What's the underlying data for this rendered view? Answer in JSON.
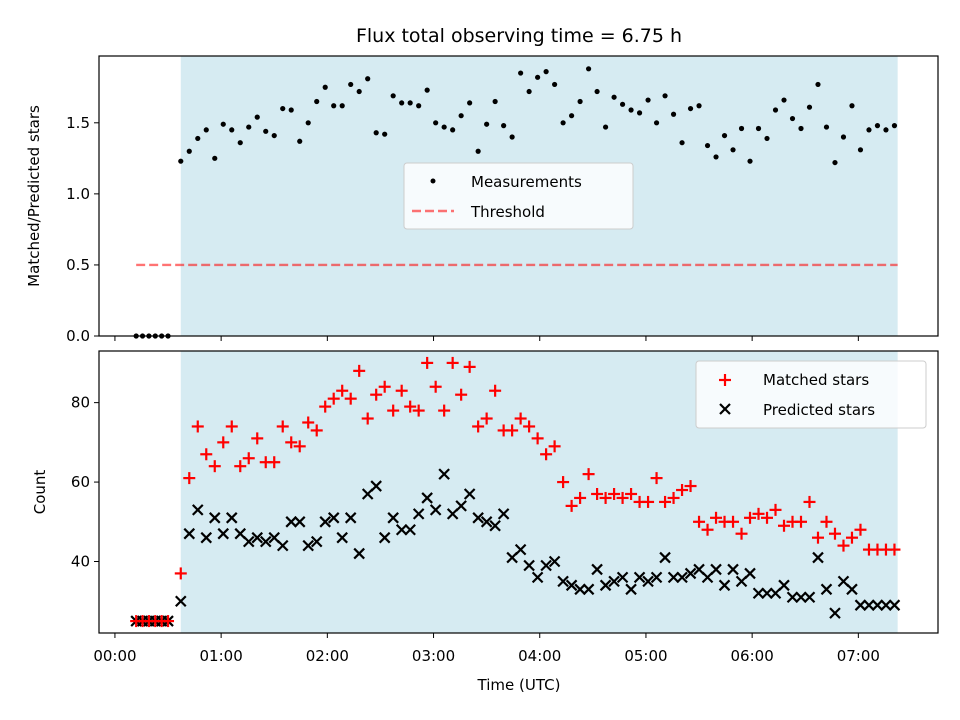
{
  "chart_data": {
    "type": "scatter",
    "title": "Flux total observing time = 6.75 h",
    "xlabel": "Time (UTC)",
    "x_unit": "hours since 00:00 UTC",
    "xlim": [
      -0.15,
      7.75
    ],
    "x_ticks": [
      {
        "value": 0,
        "label": "00:00"
      },
      {
        "value": 1,
        "label": "01:00"
      },
      {
        "value": 2,
        "label": "02:00"
      },
      {
        "value": 3,
        "label": "03:00"
      },
      {
        "value": 4,
        "label": "04:00"
      },
      {
        "value": 5,
        "label": "05:00"
      },
      {
        "value": 6,
        "label": "06:00"
      },
      {
        "value": 7,
        "label": "07:00"
      }
    ],
    "observing_window": {
      "start": 0.62,
      "end": 7.37,
      "color": "#add8e6"
    },
    "top_panel": {
      "ylabel": "Matched/Predicted stars",
      "ylim": [
        0,
        1.97
      ],
      "y_ticks": [
        {
          "value": 0,
          "label": "0.0"
        },
        {
          "value": 0.5,
          "label": "0.5"
        },
        {
          "value": 1.0,
          "label": "1.0"
        },
        {
          "value": 1.5,
          "label": "1.5"
        }
      ],
      "legend": {
        "position": "center",
        "entries": [
          "Measurements",
          "Threshold"
        ]
      },
      "threshold": {
        "name": "Threshold",
        "value": 0.5,
        "x_range": [
          0.2,
          7.37
        ],
        "color": "#ff0000"
      },
      "measurements": {
        "name": "Measurements",
        "color": "#000000",
        "x": [
          0.2,
          0.26,
          0.32,
          0.38,
          0.44,
          0.5,
          0.62,
          0.7,
          0.78,
          0.86,
          0.94,
          1.02,
          1.1,
          1.18,
          1.26,
          1.34,
          1.42,
          1.5,
          1.58,
          1.66,
          1.74,
          1.82,
          1.9,
          1.98,
          2.06,
          2.14,
          2.22,
          2.3,
          2.38,
          2.46,
          2.54,
          2.62,
          2.7,
          2.78,
          2.86,
          2.94,
          3.02,
          3.1,
          3.18,
          3.26,
          3.34,
          3.42,
          3.5,
          3.58,
          3.66,
          3.74,
          3.82,
          3.9,
          3.98,
          4.06,
          4.14,
          4.22,
          4.3,
          4.38,
          4.46,
          4.54,
          4.62,
          4.7,
          4.78,
          4.86,
          4.94,
          5.02,
          5.1,
          5.18,
          5.26,
          5.34,
          5.42,
          5.5,
          5.58,
          5.66,
          5.74,
          5.82,
          5.9,
          5.98,
          6.06,
          6.14,
          6.22,
          6.3,
          6.38,
          6.46,
          6.54,
          6.62,
          6.7,
          6.78,
          6.86,
          6.94,
          7.02,
          7.1,
          7.18,
          7.26,
          7.34
        ],
        "y": [
          0,
          0,
          0,
          0,
          0,
          0,
          1.23,
          1.3,
          1.39,
          1.45,
          1.25,
          1.49,
          1.45,
          1.36,
          1.47,
          1.54,
          1.44,
          1.41,
          1.6,
          1.59,
          1.37,
          1.5,
          1.65,
          1.75,
          1.62,
          1.62,
          1.77,
          1.72,
          1.81,
          1.43,
          1.42,
          1.69,
          1.64,
          1.64,
          1.62,
          1.73,
          1.5,
          1.47,
          1.45,
          1.55,
          1.64,
          1.3,
          1.49,
          1.65,
          1.48,
          1.4,
          1.85,
          1.72,
          1.82,
          1.86,
          1.77,
          1.5,
          1.55,
          1.65,
          1.88,
          1.72,
          1.47,
          1.68,
          1.63,
          1.59,
          1.57,
          1.66,
          1.5,
          1.69,
          1.56,
          1.36,
          1.6,
          1.62,
          1.34,
          1.26,
          1.41,
          1.31,
          1.46,
          1.23,
          1.46,
          1.39,
          1.59,
          1.66,
          1.53,
          1.46,
          1.61,
          1.77,
          1.47,
          1.22,
          1.4,
          1.62,
          1.31,
          1.45,
          1.48,
          1.45,
          1.48
        ]
      }
    },
    "bottom_panel": {
      "ylabel": "Count",
      "ylim": [
        22,
        93
      ],
      "y_ticks": [
        {
          "value": 40,
          "label": "40"
        },
        {
          "value": 60,
          "label": "60"
        },
        {
          "value": 80,
          "label": "80"
        }
      ],
      "legend": {
        "position": "top-right",
        "entries": [
          "Matched stars",
          "Predicted stars"
        ]
      },
      "x": [
        0.2,
        0.26,
        0.32,
        0.38,
        0.44,
        0.5,
        0.62,
        0.7,
        0.78,
        0.86,
        0.94,
        1.02,
        1.1,
        1.18,
        1.26,
        1.34,
        1.42,
        1.5,
        1.58,
        1.66,
        1.74,
        1.82,
        1.9,
        1.98,
        2.06,
        2.14,
        2.22,
        2.3,
        2.38,
        2.46,
        2.54,
        2.62,
        2.7,
        2.78,
        2.86,
        2.94,
        3.02,
        3.1,
        3.18,
        3.26,
        3.34,
        3.42,
        3.5,
        3.58,
        3.66,
        3.74,
        3.82,
        3.9,
        3.98,
        4.06,
        4.14,
        4.22,
        4.3,
        4.38,
        4.46,
        4.54,
        4.62,
        4.7,
        4.78,
        4.86,
        4.94,
        5.02,
        5.1,
        5.18,
        5.26,
        5.34,
        5.42,
        5.5,
        5.58,
        5.66,
        5.74,
        5.82,
        5.9,
        5.98,
        6.06,
        6.14,
        6.22,
        6.3,
        6.38,
        6.46,
        6.54,
        6.62,
        6.7,
        6.78,
        6.86,
        6.94,
        7.02,
        7.1,
        7.18,
        7.26,
        7.34
      ],
      "series": [
        {
          "name": "Matched stars",
          "marker": "plus",
          "color": "#ff0000",
          "values": [
            25,
            25,
            25,
            25,
            25,
            25,
            37,
            61,
            74,
            67,
            64,
            70,
            74,
            64,
            66,
            71,
            65,
            65,
            74,
            70,
            69,
            75,
            73,
            79,
            81,
            83,
            81,
            88,
            76,
            82,
            84,
            78,
            83,
            79,
            78,
            90,
            84,
            78,
            90,
            82,
            89,
            74,
            76,
            83,
            73,
            73,
            76,
            74,
            71,
            67,
            69,
            60,
            54,
            56,
            62,
            57,
            56,
            57,
            56,
            57,
            55,
            55,
            61,
            55,
            56,
            58,
            59,
            50,
            48,
            51,
            50,
            50,
            47,
            51,
            52,
            51,
            53,
            49,
            50,
            50,
            55,
            46,
            50,
            47,
            44,
            46,
            48,
            43,
            43,
            43,
            43
          ]
        },
        {
          "name": "Predicted stars",
          "marker": "x",
          "color": "#000000",
          "values": [
            25,
            25,
            25,
            25,
            25,
            25,
            30,
            47,
            53,
            46,
            51,
            47,
            51,
            47,
            45,
            46,
            45,
            46,
            44,
            50,
            50,
            44,
            45,
            50,
            51,
            46,
            51,
            42,
            57,
            59,
            46,
            51,
            48,
            48,
            52,
            56,
            53,
            62,
            52,
            54,
            57,
            51,
            50,
            49,
            52,
            41,
            43,
            39,
            36,
            39,
            40,
            35,
            34,
            33,
            33,
            38,
            34,
            35,
            36,
            33,
            36,
            35,
            36,
            41,
            36,
            36,
            37,
            38,
            36,
            38,
            34,
            38,
            35,
            37,
            32,
            32,
            32,
            34,
            31,
            31,
            31,
            41,
            33,
            27,
            35,
            33,
            29,
            29,
            29,
            29,
            29
          ]
        }
      ]
    }
  }
}
